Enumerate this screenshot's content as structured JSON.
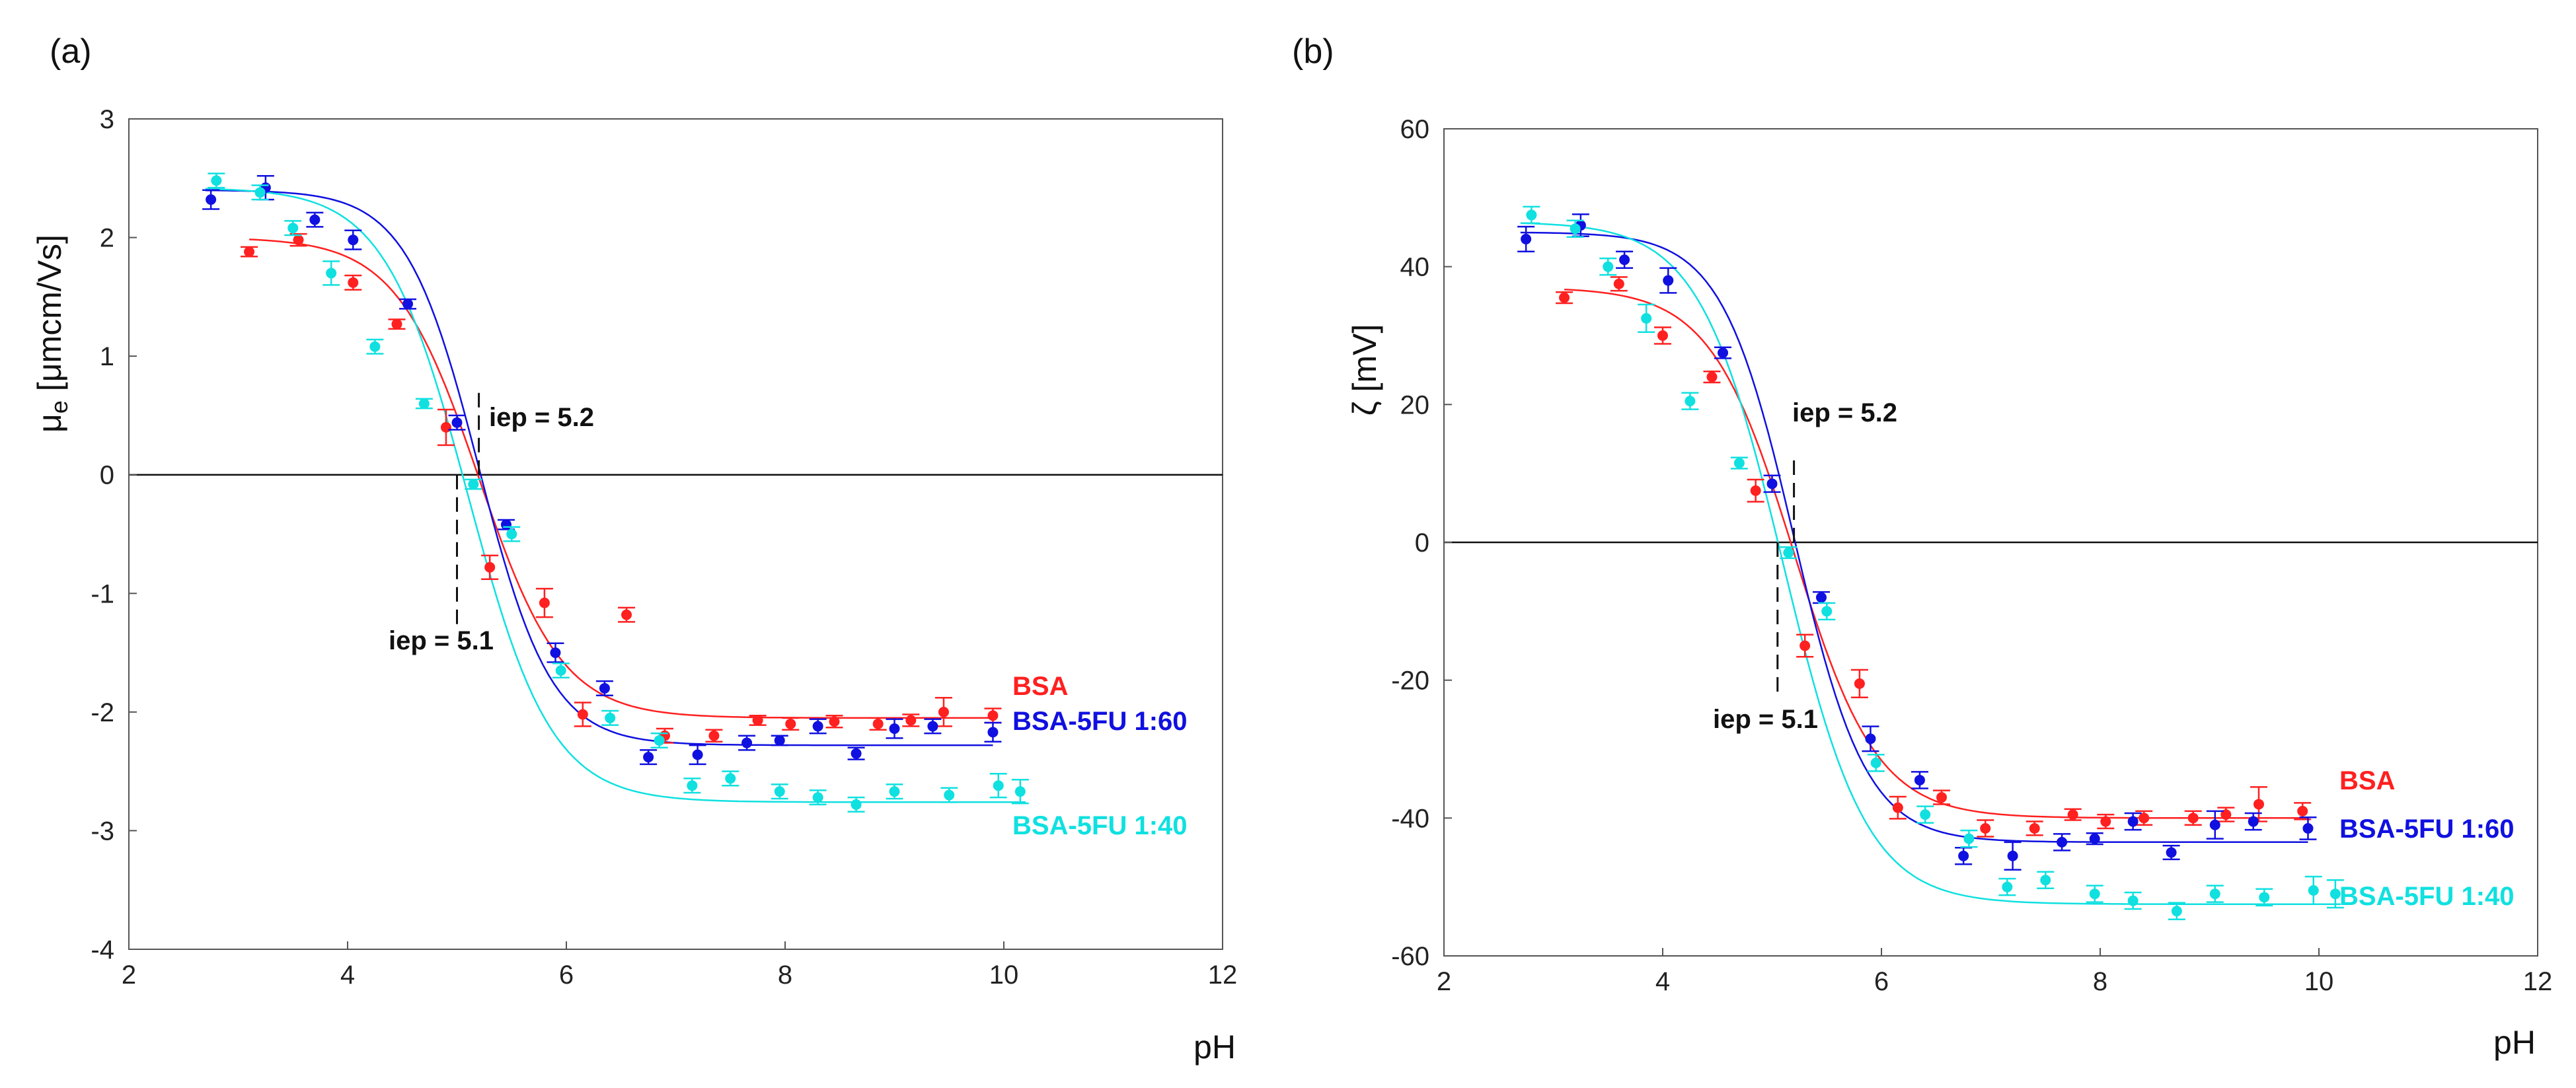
{
  "chart_data": [
    {
      "type": "scatter",
      "panel": "(a)",
      "xlabel": "pH",
      "ylabel": {
        "symbol": "μ",
        "subscript": "e",
        "unit": " [μmcm/Vs]"
      },
      "xlim": [
        2,
        12
      ],
      "ylim": [
        -4,
        3
      ],
      "xticks": [
        2,
        4,
        6,
        8,
        10,
        12
      ],
      "yticks": [
        -4,
        -3,
        -2,
        -1,
        0,
        1,
        2,
        3
      ],
      "annotations": [
        {
          "text": "iep = 5.2",
          "x": 5.2
        },
        {
          "text": "iep = 5.1",
          "x": 5.0
        }
      ],
      "series": [
        {
          "name": "BSA",
          "color": "#ff2020",
          "fit": {
            "top": 2.0,
            "bottom": -2.05,
            "iep": 5.2,
            "slope": 0.38,
            "x0": 3.1,
            "x1": 9.9
          },
          "points": [
            [
              3.1,
              1.88,
              0.04
            ],
            [
              3.55,
              1.98,
              0.05
            ],
            [
              4.05,
              1.62,
              0.06
            ],
            [
              4.45,
              1.27,
              0.04
            ],
            [
              4.9,
              0.4,
              0.15
            ],
            [
              5.3,
              -0.78,
              0.1
            ],
            [
              5.8,
              -1.08,
              0.12
            ],
            [
              6.15,
              -2.02,
              0.1
            ],
            [
              6.55,
              -1.18,
              0.06
            ],
            [
              6.9,
              -2.2,
              0.06
            ],
            [
              7.35,
              -2.2,
              0.05
            ],
            [
              7.75,
              -2.07,
              0.04
            ],
            [
              8.05,
              -2.1,
              0.05
            ],
            [
              8.45,
              -2.08,
              0.05
            ],
            [
              8.85,
              -2.1,
              0.05
            ],
            [
              9.15,
              -2.07,
              0.05
            ],
            [
              9.45,
              -2.0,
              0.12
            ],
            [
              9.9,
              -2.03,
              0.06
            ]
          ]
        },
        {
          "name": "BSA-5FU 1:60",
          "color": "#1010e0",
          "fit": {
            "top": 2.4,
            "bottom": -2.28,
            "iep": 5.2,
            "slope": 0.33,
            "x0": 2.7,
            "x1": 9.9
          },
          "points": [
            [
              2.75,
              2.32,
              0.08
            ],
            [
              3.25,
              2.42,
              0.1
            ],
            [
              3.7,
              2.15,
              0.06
            ],
            [
              4.05,
              1.98,
              0.08
            ],
            [
              4.55,
              1.44,
              0.04
            ],
            [
              5.0,
              0.44,
              0.06
            ],
            [
              5.45,
              -0.42,
              0.04
            ],
            [
              5.9,
              -1.5,
              0.08
            ],
            [
              6.35,
              -1.8,
              0.06
            ],
            [
              6.75,
              -2.38,
              0.06
            ],
            [
              7.2,
              -2.36,
              0.08
            ],
            [
              7.65,
              -2.26,
              0.06
            ],
            [
              7.95,
              -2.24,
              0.04
            ],
            [
              8.3,
              -2.12,
              0.06
            ],
            [
              8.65,
              -2.35,
              0.05
            ],
            [
              9.0,
              -2.14,
              0.08
            ],
            [
              9.35,
              -2.12,
              0.06
            ],
            [
              9.9,
              -2.17,
              0.08
            ]
          ]
        },
        {
          "name": "BSA-5FU 1:40",
          "color": "#10e0e0",
          "fit": {
            "top": 2.42,
            "bottom": -2.76,
            "iep": 5.1,
            "slope": 0.38,
            "x0": 2.7,
            "x1": 10.2
          },
          "points": [
            [
              2.8,
              2.48,
              0.06
            ],
            [
              3.2,
              2.38,
              0.06
            ],
            [
              3.5,
              2.08,
              0.06
            ],
            [
              3.85,
              1.7,
              0.1
            ],
            [
              4.25,
              1.08,
              0.06
            ],
            [
              4.7,
              0.6,
              0.04
            ],
            [
              5.15,
              -0.08,
              0.04
            ],
            [
              5.5,
              -0.5,
              0.06
            ],
            [
              5.95,
              -1.65,
              0.06
            ],
            [
              6.4,
              -2.05,
              0.06
            ],
            [
              6.85,
              -2.24,
              0.06
            ],
            [
              7.15,
              -2.62,
              0.06
            ],
            [
              7.5,
              -2.56,
              0.06
            ],
            [
              7.95,
              -2.67,
              0.06
            ],
            [
              8.3,
              -2.72,
              0.06
            ],
            [
              8.65,
              -2.78,
              0.06
            ],
            [
              9.0,
              -2.67,
              0.06
            ],
            [
              9.5,
              -2.7,
              0.06
            ],
            [
              9.95,
              -2.62,
              0.1
            ],
            [
              10.15,
              -2.67,
              0.1
            ]
          ]
        }
      ]
    },
    {
      "type": "scatter",
      "panel": "(b)",
      "xlabel": "pH",
      "ylabel": {
        "symbol": "ζ",
        "subscript": "",
        "unit": " [mV]"
      },
      "xlim": [
        2,
        12
      ],
      "ylim": [
        -60,
        60
      ],
      "xticks": [
        2,
        4,
        6,
        8,
        10,
        12
      ],
      "yticks": [
        -60,
        -40,
        -20,
        0,
        20,
        40,
        60
      ],
      "annotations": [
        {
          "text": "iep = 5.2",
          "x": 5.2
        },
        {
          "text": "iep = 5.1",
          "x": 5.05
        }
      ],
      "series": [
        {
          "name": "BSA",
          "color": "#ff2020",
          "fit": {
            "top": 37.0,
            "bottom": -40.0,
            "iep": 5.2,
            "slope": 0.38,
            "x0": 3.1,
            "x1": 9.9
          },
          "points": [
            [
              3.1,
              35.5,
              0.8
            ],
            [
              3.6,
              37.5,
              1.0
            ],
            [
              4.0,
              30.0,
              1.2
            ],
            [
              4.45,
              24.0,
              0.8
            ],
            [
              4.85,
              7.5,
              1.6
            ],
            [
              5.3,
              -15.0,
              1.6
            ],
            [
              5.8,
              -20.5,
              2.0
            ],
            [
              6.15,
              -38.5,
              1.6
            ],
            [
              6.55,
              -37.0,
              1.0
            ],
            [
              6.95,
              -41.5,
              1.2
            ],
            [
              7.4,
              -41.5,
              1.0
            ],
            [
              7.75,
              -39.5,
              0.8
            ],
            [
              8.05,
              -40.5,
              1.0
            ],
            [
              8.4,
              -40.0,
              1.0
            ],
            [
              8.85,
              -40.0,
              1.0
            ],
            [
              9.15,
              -39.5,
              1.0
            ],
            [
              9.45,
              -38.0,
              2.5
            ],
            [
              9.85,
              -39.0,
              1.2
            ]
          ]
        },
        {
          "name": "BSA-5FU 1:60",
          "color": "#1010e0",
          "fit": {
            "top": 45.0,
            "bottom": -43.5,
            "iep": 5.2,
            "slope": 0.33,
            "x0": 2.7,
            "x1": 9.9
          },
          "points": [
            [
              2.75,
              44.0,
              1.8
            ],
            [
              3.25,
              46.0,
              1.6
            ],
            [
              3.65,
              41.0,
              1.2
            ],
            [
              4.05,
              38.0,
              1.8
            ],
            [
              4.55,
              27.5,
              0.8
            ],
            [
              5.0,
              8.5,
              1.2
            ],
            [
              5.45,
              -8.0,
              0.8
            ],
            [
              5.9,
              -28.5,
              1.8
            ],
            [
              6.35,
              -34.5,
              1.2
            ],
            [
              6.75,
              -45.5,
              1.2
            ],
            [
              7.2,
              -45.5,
              2.0
            ],
            [
              7.65,
              -43.5,
              1.2
            ],
            [
              7.95,
              -43.0,
              0.8
            ],
            [
              8.3,
              -40.5,
              1.2
            ],
            [
              8.65,
              -45.0,
              1.0
            ],
            [
              9.05,
              -41.0,
              2.0
            ],
            [
              9.4,
              -40.5,
              1.2
            ],
            [
              9.9,
              -41.5,
              1.6
            ]
          ]
        },
        {
          "name": "BSA-5FU 1:40",
          "color": "#10e0e0",
          "fit": {
            "top": 46.5,
            "bottom": -52.5,
            "iep": 5.1,
            "slope": 0.38,
            "x0": 2.7,
            "x1": 10.2
          },
          "points": [
            [
              2.8,
              47.5,
              1.2
            ],
            [
              3.2,
              45.5,
              1.2
            ],
            [
              3.5,
              40.0,
              1.2
            ],
            [
              3.85,
              32.5,
              2.0
            ],
            [
              4.25,
              20.5,
              1.2
            ],
            [
              4.7,
              11.5,
              0.8
            ],
            [
              5.15,
              -1.5,
              0.8
            ],
            [
              5.5,
              -10.0,
              1.2
            ],
            [
              5.95,
              -32.0,
              1.2
            ],
            [
              6.4,
              -39.5,
              1.2
            ],
            [
              6.8,
              -43.0,
              1.2
            ],
            [
              7.15,
              -50.0,
              1.2
            ],
            [
              7.5,
              -49.0,
              1.2
            ],
            [
              7.95,
              -51.0,
              1.2
            ],
            [
              8.3,
              -52.0,
              1.2
            ],
            [
              8.7,
              -53.5,
              1.2
            ],
            [
              9.05,
              -51.0,
              1.2
            ],
            [
              9.5,
              -51.5,
              1.2
            ],
            [
              9.95,
              -50.5,
              2.0
            ],
            [
              10.15,
              -51.0,
              2.0
            ]
          ]
        }
      ]
    }
  ]
}
